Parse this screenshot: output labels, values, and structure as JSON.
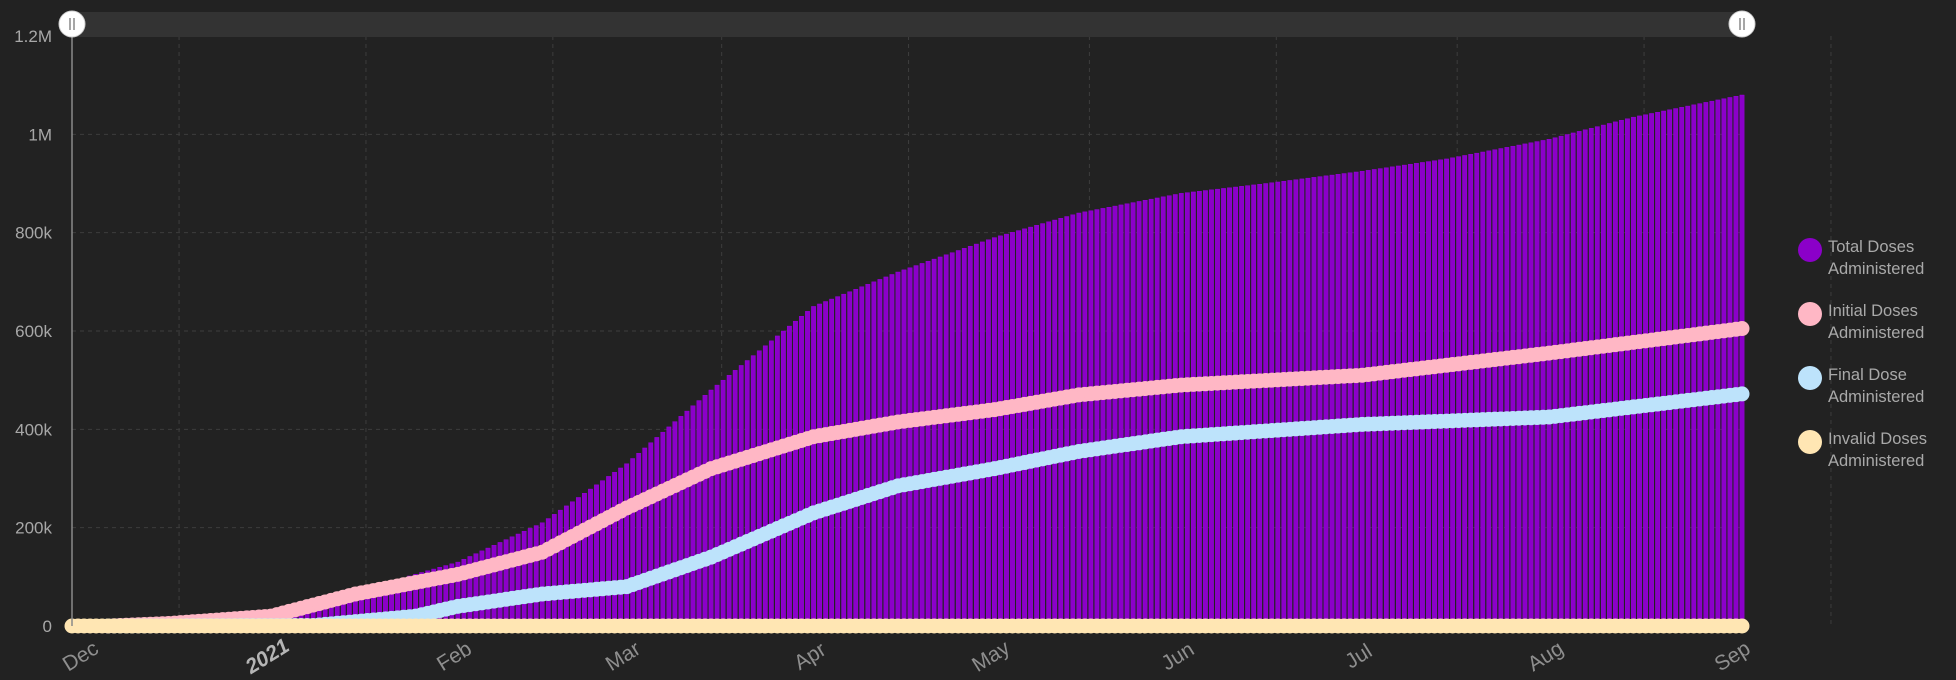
{
  "colors": {
    "background": "#222222",
    "grid": "#3d3d3d",
    "axis": "#8a8a8a",
    "total": "#8b00c9",
    "total_edge": "#a000e8",
    "initial": "#ffb7c5",
    "final": "#bde3fb",
    "invalid": "#ffe6b3"
  },
  "legend": {
    "position": "right",
    "items": [
      {
        "series": "total",
        "label": "Total Doses Administered"
      },
      {
        "series": "initial",
        "label": "Initial Doses Administered"
      },
      {
        "series": "final",
        "label": "Final Dose Administered"
      },
      {
        "series": "invalid",
        "label": "Invalid Doses Administered"
      }
    ]
  },
  "chart_data": {
    "type": "bar",
    "title": "",
    "xlabel": "",
    "ylabel": "",
    "grid": true,
    "x_range": [
      "2020-11-29",
      "2021-09-02"
    ],
    "ylim": [
      0,
      1200000
    ],
    "y_ticks": [
      {
        "value": 0,
        "label": "0"
      },
      {
        "value": 200000,
        "label": "200k"
      },
      {
        "value": 400000,
        "label": "400k"
      },
      {
        "value": 600000,
        "label": "600k"
      },
      {
        "value": 800000,
        "label": "800k"
      },
      {
        "value": 1000000,
        "label": "1M"
      },
      {
        "value": 1200000,
        "label": "1.2M"
      }
    ],
    "x_ticks": [
      {
        "date": "2020-12-01",
        "label": "Dec",
        "emphasis": false
      },
      {
        "date": "2021-01-01",
        "label": "2021",
        "emphasis": true
      },
      {
        "date": "2021-02-01",
        "label": "Feb",
        "emphasis": false
      },
      {
        "date": "2021-03-01",
        "label": "Mar",
        "emphasis": false
      },
      {
        "date": "2021-04-01",
        "label": "Apr",
        "emphasis": false
      },
      {
        "date": "2021-05-01",
        "label": "May",
        "emphasis": false
      },
      {
        "date": "2021-06-01",
        "label": "Jun",
        "emphasis": false
      },
      {
        "date": "2021-07-01",
        "label": "Jul",
        "emphasis": false
      },
      {
        "date": "2021-08-01",
        "label": "Aug",
        "emphasis": false
      },
      {
        "date": "2021-09-01",
        "label": "Sep",
        "emphasis": false
      }
    ],
    "series": [
      {
        "name": "Total Doses Administered",
        "key": "total",
        "type": "bar",
        "start": "2020-12-15",
        "end": "2021-09-02",
        "points": [
          {
            "date": "2020-12-15",
            "value": 0
          },
          {
            "date": "2020-12-25",
            "value": 10000
          },
          {
            "date": "2021-01-01",
            "value": 25000
          },
          {
            "date": "2021-01-15",
            "value": 70000
          },
          {
            "date": "2021-02-01",
            "value": 130000
          },
          {
            "date": "2021-02-15",
            "value": 210000
          },
          {
            "date": "2021-03-01",
            "value": 330000
          },
          {
            "date": "2021-03-15",
            "value": 480000
          },
          {
            "date": "2021-04-01",
            "value": 650000
          },
          {
            "date": "2021-04-15",
            "value": 720000
          },
          {
            "date": "2021-05-01",
            "value": 790000
          },
          {
            "date": "2021-05-15",
            "value": 840000
          },
          {
            "date": "2021-06-01",
            "value": 880000
          },
          {
            "date": "2021-06-15",
            "value": 900000
          },
          {
            "date": "2021-07-01",
            "value": 925000
          },
          {
            "date": "2021-07-15",
            "value": 950000
          },
          {
            "date": "2021-08-01",
            "value": 990000
          },
          {
            "date": "2021-08-15",
            "value": 1035000
          },
          {
            "date": "2021-09-02",
            "value": 1080000
          }
        ]
      },
      {
        "name": "Initial Doses Administered",
        "key": "initial",
        "type": "line",
        "start": "2020-12-05",
        "end": "2021-09-02",
        "points": [
          {
            "date": "2020-12-05",
            "value": 0
          },
          {
            "date": "2020-12-15",
            "value": 5000
          },
          {
            "date": "2021-01-01",
            "value": 20000
          },
          {
            "date": "2021-01-15",
            "value": 65000
          },
          {
            "date": "2021-02-01",
            "value": 105000
          },
          {
            "date": "2021-02-15",
            "value": 150000
          },
          {
            "date": "2021-03-01",
            "value": 240000
          },
          {
            "date": "2021-03-15",
            "value": 320000
          },
          {
            "date": "2021-04-01",
            "value": 385000
          },
          {
            "date": "2021-04-15",
            "value": 415000
          },
          {
            "date": "2021-05-01",
            "value": 440000
          },
          {
            "date": "2021-05-15",
            "value": 470000
          },
          {
            "date": "2021-06-01",
            "value": 490000
          },
          {
            "date": "2021-07-01",
            "value": 510000
          },
          {
            "date": "2021-08-01",
            "value": 555000
          },
          {
            "date": "2021-09-02",
            "value": 605000
          }
        ]
      },
      {
        "name": "Final Dose Administered",
        "key": "final",
        "type": "line",
        "start": "2020-12-05",
        "end": "2021-09-02",
        "points": [
          {
            "date": "2020-12-05",
            "value": 0
          },
          {
            "date": "2021-01-08",
            "value": 1000
          },
          {
            "date": "2021-01-25",
            "value": 20000
          },
          {
            "date": "2021-02-01",
            "value": 40000
          },
          {
            "date": "2021-02-15",
            "value": 65000
          },
          {
            "date": "2021-03-01",
            "value": 80000
          },
          {
            "date": "2021-03-15",
            "value": 140000
          },
          {
            "date": "2021-04-01",
            "value": 230000
          },
          {
            "date": "2021-04-15",
            "value": 285000
          },
          {
            "date": "2021-05-01",
            "value": 320000
          },
          {
            "date": "2021-05-15",
            "value": 355000
          },
          {
            "date": "2021-06-01",
            "value": 385000
          },
          {
            "date": "2021-07-01",
            "value": 410000
          },
          {
            "date": "2021-08-01",
            "value": 425000
          },
          {
            "date": "2021-09-02",
            "value": 472000
          }
        ]
      },
      {
        "name": "Invalid Doses Administered",
        "key": "invalid",
        "type": "line",
        "start": "2020-11-29",
        "end": "2021-09-02",
        "points": [
          {
            "date": "2020-11-29",
            "value": 0
          },
          {
            "date": "2021-09-02",
            "value": 0
          }
        ]
      }
    ]
  }
}
